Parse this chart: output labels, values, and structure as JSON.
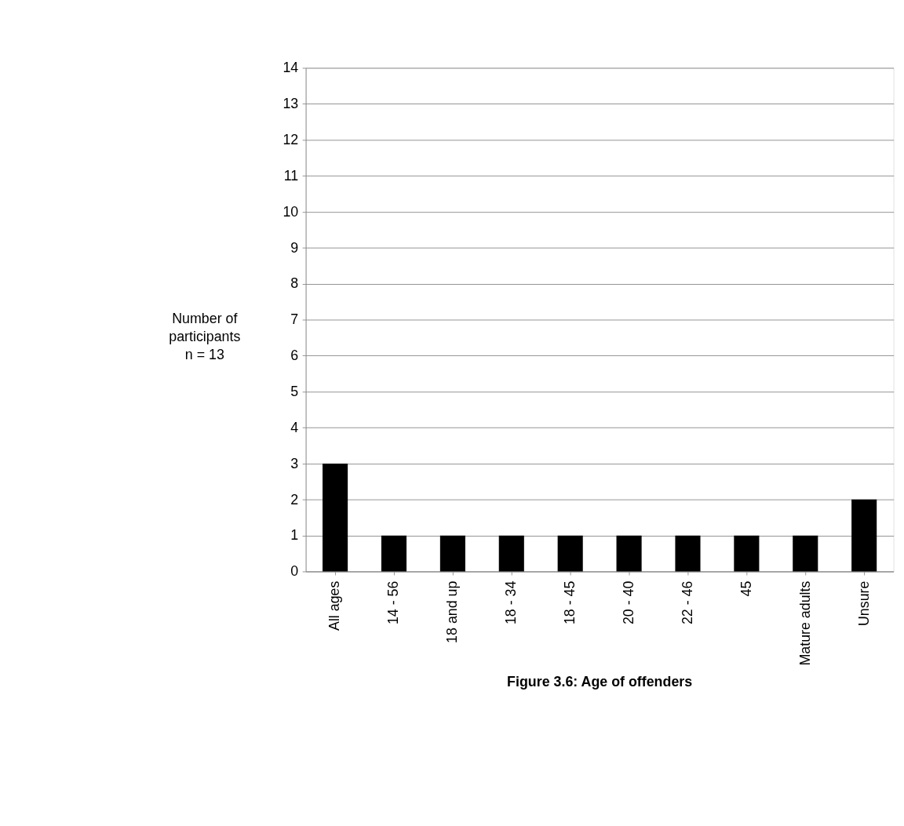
{
  "chart_data": {
    "type": "bar",
    "title": "Figure 3.6: Age of offenders",
    "ylabel": "Number of\nparticipants\nn = 13",
    "categories": [
      "All ages",
      "14 - 56",
      "18 and up",
      "18 - 34",
      "18 - 45",
      "20 - 40",
      "22 - 46",
      "45",
      "Mature adults",
      "Unsure"
    ],
    "values": [
      3,
      1,
      1,
      1,
      1,
      1,
      1,
      1,
      1,
      2
    ],
    "color": "#000000",
    "ylim": [
      0,
      14
    ],
    "yticks": [
      0,
      1,
      2,
      3,
      4,
      5,
      6,
      7,
      8,
      9,
      10,
      11,
      12,
      13,
      14
    ],
    "grid": "y"
  }
}
